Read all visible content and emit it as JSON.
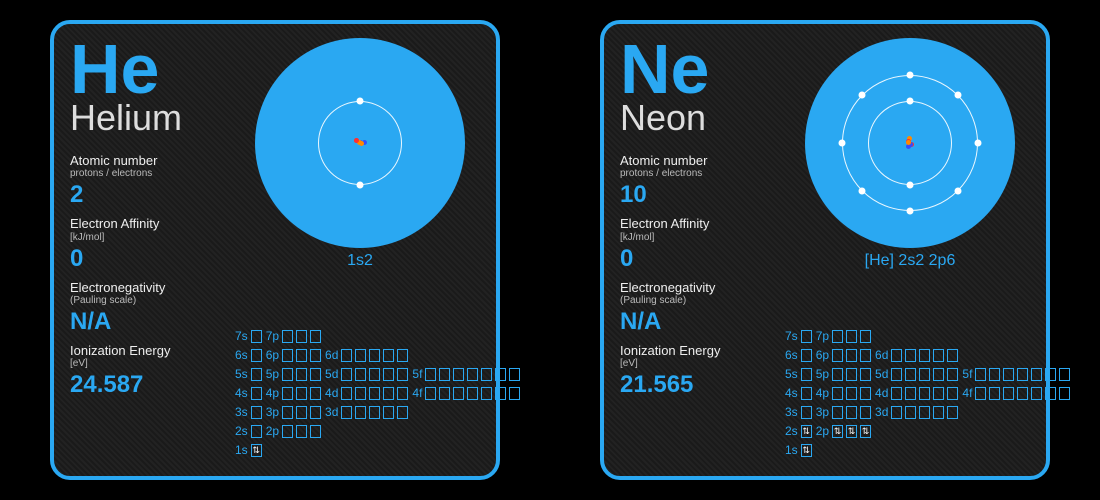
{
  "accent": "#2aa8f2",
  "card_bg": "#181818",
  "card_border_radius": 20,
  "labels": {
    "atomic_number": "Atomic number",
    "protons_electrons": "protons / electrons",
    "electron_affinity": "Electron Affinity",
    "ea_unit": "[kJ/mol]",
    "electronegativity": "Electronegativity",
    "en_scale": "(Pauling scale)",
    "ionization": "Ionization Energy",
    "ion_unit": "[eV]"
  },
  "orbital_schema": [
    {
      "row": "7",
      "subs": [
        {
          "l": "7s",
          "n": 1
        },
        {
          "l": "7p",
          "n": 3
        }
      ]
    },
    {
      "row": "6",
      "subs": [
        {
          "l": "6s",
          "n": 1
        },
        {
          "l": "6p",
          "n": 3
        },
        {
          "l": "6d",
          "n": 5
        }
      ]
    },
    {
      "row": "5",
      "subs": [
        {
          "l": "5s",
          "n": 1
        },
        {
          "l": "5p",
          "n": 3
        },
        {
          "l": "5d",
          "n": 5
        },
        {
          "l": "5f",
          "n": 7
        }
      ]
    },
    {
      "row": "4",
      "subs": [
        {
          "l": "4s",
          "n": 1
        },
        {
          "l": "4p",
          "n": 3
        },
        {
          "l": "4d",
          "n": 5
        },
        {
          "l": "4f",
          "n": 7
        }
      ]
    },
    {
      "row": "3",
      "subs": [
        {
          "l": "3s",
          "n": 1
        },
        {
          "l": "3p",
          "n": 3
        },
        {
          "l": "3d",
          "n": 5
        }
      ]
    },
    {
      "row": "2",
      "subs": [
        {
          "l": "2s",
          "n": 1
        },
        {
          "l": "2p",
          "n": 3
        }
      ]
    },
    {
      "row": "1",
      "subs": [
        {
          "l": "1s",
          "n": 1
        }
      ]
    }
  ],
  "elements": [
    {
      "symbol": "He",
      "name": "Helium",
      "atomic_number": 2,
      "electron_affinity": 0,
      "electronegativity": "N/A",
      "ionization_energy": 24.587,
      "electron_config": "1s2",
      "shells": [
        2
      ],
      "filled": {
        "1s": 2
      }
    },
    {
      "symbol": "Ne",
      "name": "Neon",
      "atomic_number": 10,
      "electron_affinity": 0,
      "electronegativity": "N/A",
      "ionization_energy": 21.565,
      "electron_config": "[He] 2s2 2p6",
      "shells": [
        2,
        8
      ],
      "filled": {
        "1s": 2,
        "2s": 2,
        "2p": 6
      }
    }
  ]
}
